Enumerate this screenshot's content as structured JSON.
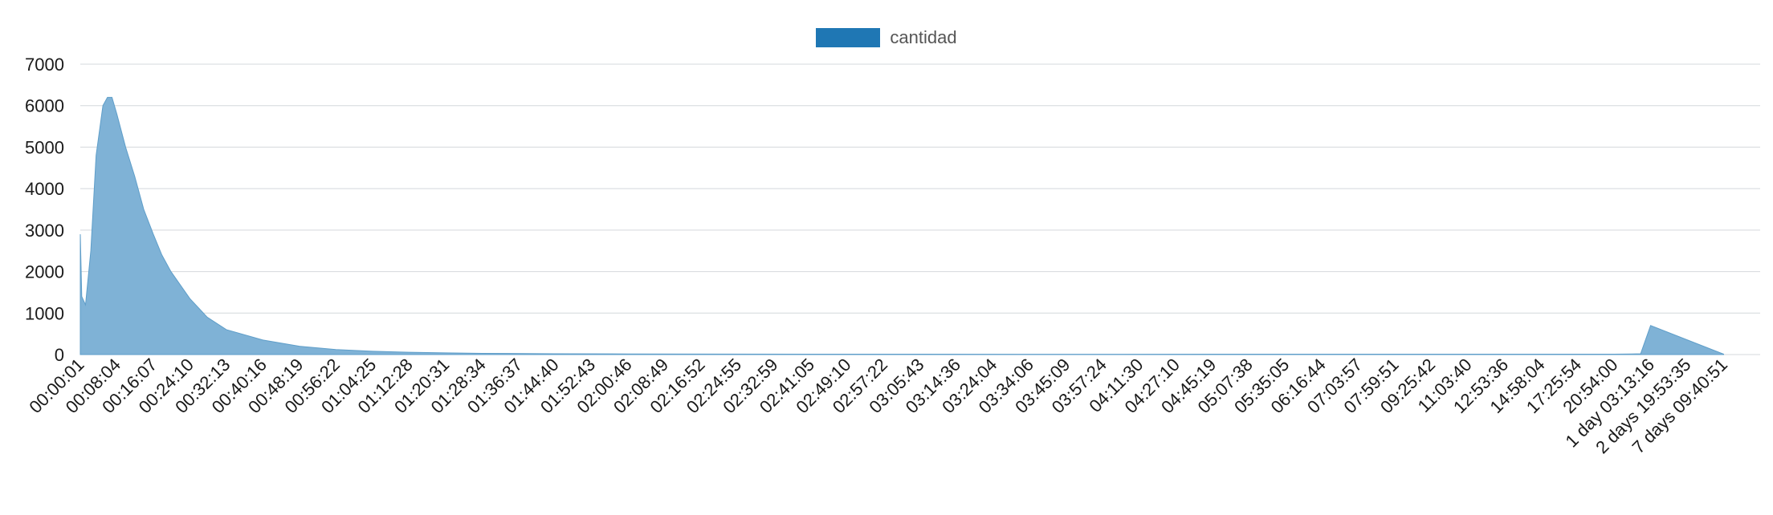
{
  "colors": {
    "series_fill": "#7fb2d6",
    "series_stroke": "#5f9ec9",
    "legend_swatch": "#1f77b4",
    "grid": "#d4d8dc",
    "axis_text": "#1a1a1a"
  },
  "chart_data": {
    "type": "area",
    "title": "",
    "xlabel": "",
    "ylabel": "",
    "ylim": [
      0,
      7000
    ],
    "y_ticks": [
      "0",
      "1000",
      "2000",
      "3000",
      "4000",
      "5000",
      "6000",
      "7000"
    ],
    "grid": true,
    "legend_position": "top-center",
    "series": [
      {
        "name": "cantidad"
      }
    ],
    "x_tick_labels": [
      "00:00:01",
      "00:08:04",
      "00:16:07",
      "00:24:10",
      "00:32:13",
      "00:40:16",
      "00:48:19",
      "00:56:22",
      "01:04:25",
      "01:12:28",
      "01:20:31",
      "01:28:34",
      "01:36:37",
      "01:44:40",
      "01:52:43",
      "02:00:46",
      "02:08:49",
      "02:16:52",
      "02:24:55",
      "02:32:59",
      "02:41:05",
      "02:49:10",
      "02:57:22",
      "03:05:43",
      "03:14:36",
      "03:24:04",
      "03:34:06",
      "03:45:09",
      "03:57:24",
      "04:11:30",
      "04:27:10",
      "04:45:19",
      "05:07:38",
      "05:35:05",
      "06:16:44",
      "07:03:57",
      "07:59:51",
      "09:25:42",
      "11:03:40",
      "12:53:36",
      "14:58:04",
      "17:25:54",
      "20:54:00",
      "1 day 03:13:16",
      "2 days 19:53:35",
      "7 days 09:40:51"
    ],
    "profile": {
      "x": [
        "00:00:01",
        "00:00:20",
        "00:01:10",
        "00:02:20",
        "00:03:30",
        "00:05:00",
        "00:06:00",
        "00:07:00",
        "00:08:04",
        "00:10:00",
        "00:12:00",
        "00:14:00",
        "00:16:07",
        "00:18:00",
        "00:20:00",
        "00:24:10",
        "00:28:00",
        "00:32:13",
        "00:40:16",
        "00:48:19",
        "00:56:22",
        "01:04:25",
        "01:12:28",
        "01:20:31",
        "01:28:34",
        "01:44:40",
        "02:00:46",
        "02:41:05",
        "03:34:06",
        "20:54:00",
        "1 day 00:00:00",
        "1 day 01:30:00",
        "1 day 03:13:16",
        "7 days 09:40:51"
      ],
      "y": [
        2900,
        1400,
        1200,
        2500,
        4800,
        6000,
        6200,
        6200,
        5800,
        5000,
        4300,
        3500,
        2900,
        2400,
        2000,
        1350,
        900,
        600,
        350,
        200,
        120,
        80,
        55,
        40,
        30,
        20,
        15,
        10,
        8,
        10,
        15,
        20,
        700,
        10
      ]
    }
  }
}
